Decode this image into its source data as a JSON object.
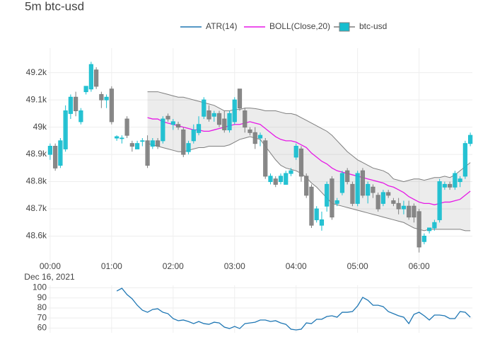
{
  "chart_data": {
    "type": "candlestick",
    "title": "5m btc-usd",
    "x_date_label": "Dec 16, 2021",
    "x": [
      "2021-12-16 00:00",
      "2021-12-16 00:05",
      "2021-12-16 00:10",
      "2021-12-16 00:15",
      "2021-12-16 00:20",
      "2021-12-16 00:25",
      "2021-12-16 00:30",
      "2021-12-16 00:35",
      "2021-12-16 00:40",
      "2021-12-16 00:45",
      "2021-12-16 00:50",
      "2021-12-16 00:55",
      "2021-12-16 01:00",
      "2021-12-16 01:05",
      "2021-12-16 01:10",
      "2021-12-16 01:15",
      "2021-12-16 01:20",
      "2021-12-16 01:25",
      "2021-12-16 01:30",
      "2021-12-16 01:35",
      "2021-12-16 01:40",
      "2021-12-16 01:45",
      "2021-12-16 01:50",
      "2021-12-16 01:55",
      "2021-12-16 02:00",
      "2021-12-16 02:05",
      "2021-12-16 02:10",
      "2021-12-16 02:15",
      "2021-12-16 02:20",
      "2021-12-16 02:25",
      "2021-12-16 02:30",
      "2021-12-16 02:35",
      "2021-12-16 02:40",
      "2021-12-16 02:45",
      "2021-12-16 02:50",
      "2021-12-16 02:55",
      "2021-12-16 03:00",
      "2021-12-16 03:05",
      "2021-12-16 03:10",
      "2021-12-16 03:15",
      "2021-12-16 03:20",
      "2021-12-16 03:25",
      "2021-12-16 03:30",
      "2021-12-16 03:35",
      "2021-12-16 03:40",
      "2021-12-16 03:45",
      "2021-12-16 03:50",
      "2021-12-16 03:55",
      "2021-12-16 04:00",
      "2021-12-16 04:05",
      "2021-12-16 04:10",
      "2021-12-16 04:15",
      "2021-12-16 04:20",
      "2021-12-16 04:25",
      "2021-12-16 04:30",
      "2021-12-16 04:35",
      "2021-12-16 04:40",
      "2021-12-16 04:45",
      "2021-12-16 04:50",
      "2021-12-16 04:55",
      "2021-12-16 05:00",
      "2021-12-16 05:05",
      "2021-12-16 05:10",
      "2021-12-16 05:15",
      "2021-12-16 05:20",
      "2021-12-16 05:25",
      "2021-12-16 05:30",
      "2021-12-16 05:35",
      "2021-12-16 05:40",
      "2021-12-16 05:45",
      "2021-12-16 05:50",
      "2021-12-16 05:55",
      "2021-12-16 06:00",
      "2021-12-16 06:05",
      "2021-12-16 06:10",
      "2021-12-16 06:15",
      "2021-12-16 06:20",
      "2021-12-16 06:25",
      "2021-12-16 06:30",
      "2021-12-16 06:35",
      "2021-12-16 06:40",
      "2021-12-16 06:45",
      "2021-12-16 06:50"
    ],
    "xlim": [
      "2021-12-15 23:58",
      "2021-12-16 06:52"
    ],
    "xticks": [
      {
        "value": "2021-12-16 00:00",
        "label": "00:00"
      },
      {
        "value": "2021-12-16 01:00",
        "label": "01:00"
      },
      {
        "value": "2021-12-16 02:00",
        "label": "02:00"
      },
      {
        "value": "2021-12-16 03:00",
        "label": "03:00"
      },
      {
        "value": "2021-12-16 04:00",
        "label": "04:00"
      },
      {
        "value": "2021-12-16 05:00",
        "label": "05:00"
      },
      {
        "value": "2021-12-16 06:00",
        "label": "06:00"
      }
    ],
    "ylim": [
      48500,
      49290
    ],
    "yticks": [
      {
        "value": 48600,
        "label": "48.6k"
      },
      {
        "value": 48700,
        "label": "48.7k"
      },
      {
        "value": 48800,
        "label": "48.8k"
      },
      {
        "value": 48900,
        "label": "48.9k"
      },
      {
        "value": 49000,
        "label": "49k"
      },
      {
        "value": 49100,
        "label": "49.1k"
      },
      {
        "value": 49200,
        "label": "49.2k"
      }
    ],
    "y2lim": [
      55.3,
      102.5
    ],
    "y2ticks": [
      60,
      70,
      80,
      90,
      100
    ],
    "grid": true,
    "increasing_color": "#17becf",
    "decreasing_color": "#7f7f7f",
    "bands": {
      "color": "#7f7f7f",
      "fill": "rgba(128,128,128,0.15)",
      "upper": [
        null,
        null,
        null,
        null,
        null,
        null,
        null,
        null,
        null,
        null,
        null,
        null,
        null,
        null,
        null,
        null,
        null,
        null,
        null,
        49130,
        49130,
        49130,
        49125,
        49120,
        49115,
        49110,
        49110,
        49105,
        49100,
        49095,
        49090,
        49085,
        49080,
        49070,
        49060,
        49060,
        49065,
        49065,
        49070,
        49070,
        49068,
        49065,
        49060,
        49060,
        49060,
        49055,
        49050,
        49050,
        49045,
        49035,
        49025,
        49015,
        49005,
        48995,
        48985,
        48970,
        48950,
        48930,
        48910,
        48895,
        48880,
        48870,
        48860,
        48850,
        48845,
        48840,
        48830,
        48810,
        48805,
        48800,
        48805,
        48810,
        48810,
        48805,
        48810,
        48815,
        48815,
        48820,
        48815,
        48825,
        48840,
        48855,
        48870
      ],
      "lower": [
        null,
        null,
        null,
        null,
        null,
        null,
        null,
        null,
        null,
        null,
        null,
        null,
        null,
        null,
        null,
        null,
        null,
        null,
        null,
        48940,
        48935,
        48930,
        48925,
        48920,
        48915,
        48910,
        48910,
        48915,
        48920,
        48925,
        48925,
        48930,
        48930,
        48930,
        48930,
        48935,
        48945,
        48955,
        48960,
        48965,
        48960,
        48955,
        48930,
        48905,
        48880,
        48860,
        48850,
        48845,
        48840,
        48830,
        48815,
        48795,
        48780,
        48760,
        48740,
        48720,
        48715,
        48710,
        48705,
        48700,
        48695,
        48690,
        48685,
        48680,
        48675,
        48670,
        48665,
        48660,
        48655,
        48650,
        48640,
        48630,
        48625,
        48620,
        48625,
        48625,
        48625,
        48625,
        48625,
        48625,
        48625,
        48620,
        48620
      ]
    },
    "series": [
      {
        "name": "ATR(14)",
        "type": "line",
        "axis": "y2",
        "color": "#1f77b4",
        "values": [
          null,
          null,
          null,
          null,
          null,
          null,
          null,
          null,
          null,
          null,
          null,
          null,
          null,
          96.8,
          99.6,
          93.3,
          89.1,
          82.7,
          77.8,
          75.7,
          78.5,
          79.2,
          75.7,
          74.3,
          69.4,
          67.3,
          68.0,
          66.5,
          64.4,
          66.5,
          64.4,
          63.7,
          65.8,
          65.1,
          60.9,
          59.5,
          61.6,
          59.5,
          64.4,
          65.1,
          65.8,
          68.0,
          68.0,
          66.5,
          67.3,
          65.1,
          63.7,
          58.8,
          58.1,
          58.8,
          65.1,
          64.4,
          68.7,
          68.7,
          71.5,
          72.2,
          70.8,
          75.7,
          75.7,
          76.4,
          82.0,
          90.5,
          87.7,
          82.7,
          82.7,
          81.3,
          76.4,
          74.3,
          72.2,
          70.8,
          64.4,
          73.6,
          75.7,
          72.2,
          68.0,
          72.9,
          72.9,
          72.2,
          69.4,
          69.4,
          76.4,
          75.7,
          70.8
        ]
      },
      {
        "name": "BOLL(Close,20)",
        "type": "line",
        "color": "#e619e6",
        "values": [
          null,
          null,
          null,
          null,
          null,
          null,
          null,
          null,
          null,
          null,
          null,
          null,
          null,
          null,
          null,
          null,
          null,
          null,
          null,
          49035,
          49030,
          49030,
          49020,
          49015,
          49010,
          49005,
          49000,
          48995,
          48990,
          48990,
          48985,
          48985,
          48990,
          48995,
          49000,
          49005,
          49010,
          49010,
          49015,
          49020,
          49015,
          49010,
          48995,
          48980,
          48965,
          48955,
          48950,
          48950,
          48945,
          48935,
          48925,
          48905,
          48890,
          48875,
          48865,
          48850,
          48840,
          48835,
          48830,
          48825,
          48820,
          48815,
          48810,
          48805,
          48800,
          48795,
          48785,
          48780,
          48770,
          48760,
          48745,
          48735,
          48725,
          48720,
          48720,
          48715,
          48720,
          48725,
          48725,
          48730,
          48735,
          48750,
          48765
        ]
      },
      {
        "name": "btc-usd",
        "type": "candlestick",
        "open": [
          48900,
          48930,
          48860,
          48920,
          49050,
          49110,
          49020,
          49130,
          49140,
          49210,
          49120,
          49100,
          49140,
          48960,
          48960,
          49030,
          48940,
          48920,
          48950,
          48950,
          48930,
          48950,
          48950,
          49040,
          49010,
          49010,
          48990,
          48910,
          48950,
          48980,
          49040,
          49060,
          49040,
          49050,
          49030,
          48990,
          49020,
          49140,
          49060,
          48990,
          48980,
          48960,
          48950,
          48800,
          48810,
          48800,
          48790,
          48830,
          48890,
          48920,
          48820,
          48780,
          48660,
          48640,
          48710,
          48810,
          48720,
          48760,
          48840,
          48790,
          48720,
          48840,
          48750,
          48780,
          48750,
          48720,
          48760,
          48730,
          48720,
          48700,
          48710,
          48710,
          48690,
          48580,
          48620,
          48630,
          48660,
          48780,
          48790,
          48780,
          48800,
          48820,
          48940
        ],
        "high": [
          48940,
          48940,
          48960,
          49080,
          49120,
          49130,
          49070,
          49150,
          49240,
          49220,
          49130,
          49120,
          49150,
          48970,
          48970,
          49040,
          48950,
          48950,
          48960,
          48970,
          48960,
          48960,
          49040,
          49050,
          49030,
          49020,
          49000,
          48950,
          49010,
          49040,
          49110,
          49080,
          49060,
          49060,
          49060,
          49060,
          49110,
          49140,
          49070,
          49000,
          49000,
          48980,
          48960,
          48830,
          48820,
          48830,
          48840,
          48850,
          48940,
          48930,
          48830,
          48790,
          48710,
          48690,
          48800,
          48820,
          48740,
          48840,
          48850,
          48800,
          48840,
          48850,
          48800,
          48790,
          48760,
          48770,
          48770,
          48740,
          48740,
          48730,
          48730,
          48720,
          48700,
          48610,
          48630,
          48660,
          48810,
          48800,
          48800,
          48840,
          48820,
          48950,
          48980
        ],
        "low": [
          48880,
          48840,
          48850,
          48910,
          49030,
          49040,
          49010,
          49120,
          49130,
          49140,
          49070,
          49070,
          49010,
          48950,
          48940,
          48960,
          48910,
          48920,
          48930,
          48850,
          48920,
          48920,
          48940,
          49020,
          48990,
          48990,
          48890,
          48900,
          48940,
          48970,
          49030,
          49020,
          49020,
          49000,
          48980,
          48980,
          49010,
          49060,
          48980,
          48970,
          48920,
          48930,
          48810,
          48790,
          48780,
          48790,
          48790,
          48820,
          48880,
          48800,
          48740,
          48630,
          48650,
          48620,
          48690,
          48660,
          48710,
          48750,
          48790,
          48710,
          48710,
          48740,
          48720,
          48740,
          48690,
          48710,
          48740,
          48710,
          48680,
          48680,
          48660,
          48650,
          48540,
          48570,
          48610,
          48620,
          48650,
          48770,
          48770,
          48770,
          48780,
          48810,
          48930
        ],
        "close": [
          48930,
          48850,
          48950,
          49060,
          49110,
          49060,
          49060,
          49150,
          49230,
          49150,
          49100,
          49110,
          49020,
          48965,
          48960,
          48970,
          48930,
          48940,
          48950,
          48860,
          48950,
          48930,
          49030,
          49030,
          49020,
          49000,
          48900,
          48940,
          48990,
          49010,
          49100,
          49030,
          49050,
          49010,
          48990,
          49050,
          49100,
          49070,
          49000,
          48980,
          48940,
          48970,
          48820,
          48820,
          48790,
          48820,
          48830,
          48840,
          48930,
          48820,
          48750,
          48640,
          48700,
          48660,
          48790,
          48670,
          48730,
          48830,
          48800,
          48720,
          48830,
          48750,
          48790,
          48760,
          48700,
          48760,
          48750,
          48720,
          48700,
          48710,
          48670,
          48670,
          48560,
          48600,
          48630,
          48650,
          48800,
          48790,
          48780,
          48830,
          48810,
          48940,
          48970
        ]
      }
    ]
  }
}
